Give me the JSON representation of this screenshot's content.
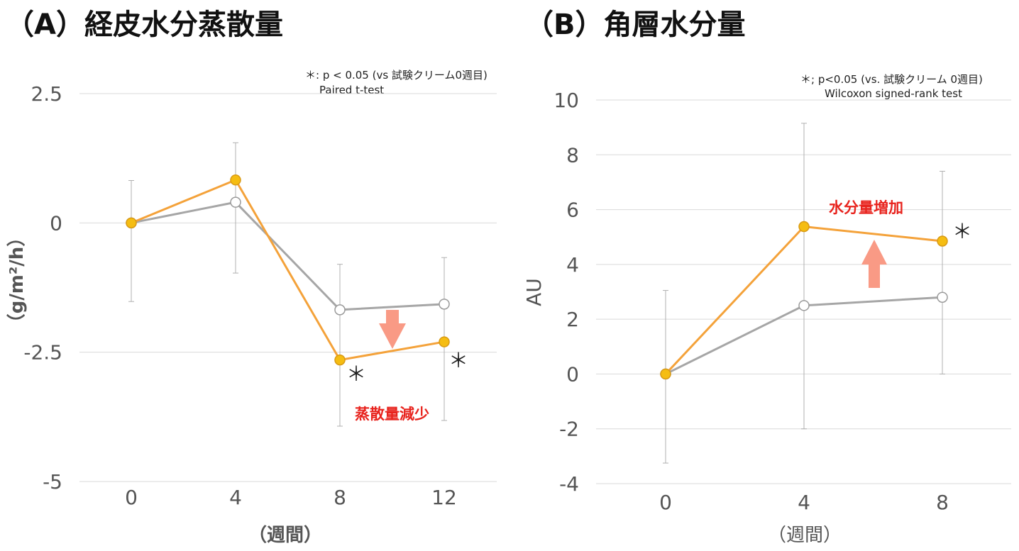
{
  "chart_data": [
    {
      "type": "line",
      "title": "（A）経皮水分蒸散量",
      "ylabel": "（g/m²/h）",
      "xlabel": "（週間）",
      "categories": [
        "0",
        "4",
        "8",
        "12"
      ],
      "ylim": [
        -5,
        2.5
      ],
      "yticks": [
        "2.5",
        "0",
        "-2.5",
        "-5"
      ],
      "grid": true,
      "series": [
        {
          "color": "#f4a23a",
          "marker_fill": "#f5bd12",
          "values": [
            0,
            0.83,
            -2.65,
            -2.3
          ]
        },
        {
          "color": "#a6a6a6",
          "marker_fill": "#ffffff",
          "values": [
            0,
            0.4,
            -1.68,
            -1.57
          ],
          "error_low": [
            -1.52,
            -0.97,
            -3.93,
            -3.82
          ],
          "error_high": [
            0.82,
            1.55,
            -0.8,
            -0.67
          ]
        }
      ],
      "significance_mark": "＊",
      "note_line1": "＊: p < 0.05 (vs 試験クリーム0週目)",
      "note_line2": "Paired t-test",
      "annotation": "蒸散量減少",
      "arrow_direction": "down",
      "arrow_color": "#f99a85"
    },
    {
      "type": "line",
      "title": "（B）角層水分量",
      "ylabel": "AU",
      "xlabel": "（週間）",
      "categories": [
        "0",
        "4",
        "8"
      ],
      "ylim": [
        -4,
        10
      ],
      "yticks": [
        "10",
        "8",
        "6",
        "4",
        "2",
        "0",
        "-2",
        "-4"
      ],
      "grid": true,
      "series": [
        {
          "color": "#f4a23a",
          "marker_fill": "#f5bd12",
          "values": [
            0,
            5.38,
            4.85
          ]
        },
        {
          "color": "#a6a6a6",
          "marker_fill": "#ffffff",
          "values": [
            0,
            2.5,
            2.8
          ],
          "error_low": [
            -3.25,
            -2.0,
            0.0
          ],
          "error_high": [
            3.05,
            9.15,
            7.4
          ]
        }
      ],
      "significance_mark": "＊",
      "note_line1": "＊; p<0.05 (vs. 試験クリーム 0週目)",
      "note_line2": "Wilcoxon signed-rank test",
      "annotation": "水分量増加",
      "arrow_direction": "up",
      "arrow_color": "#f99a85"
    }
  ]
}
